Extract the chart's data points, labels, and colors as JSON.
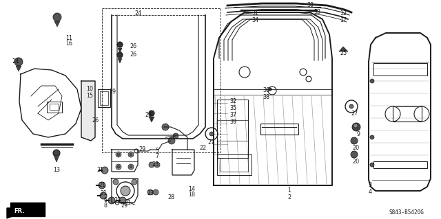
{
  "bg_color": "#ffffff",
  "line_color": "#1a1a1a",
  "fig_width": 6.4,
  "fig_height": 3.19,
  "dpi": 100,
  "diagram_ref": "S843-B5420G"
}
